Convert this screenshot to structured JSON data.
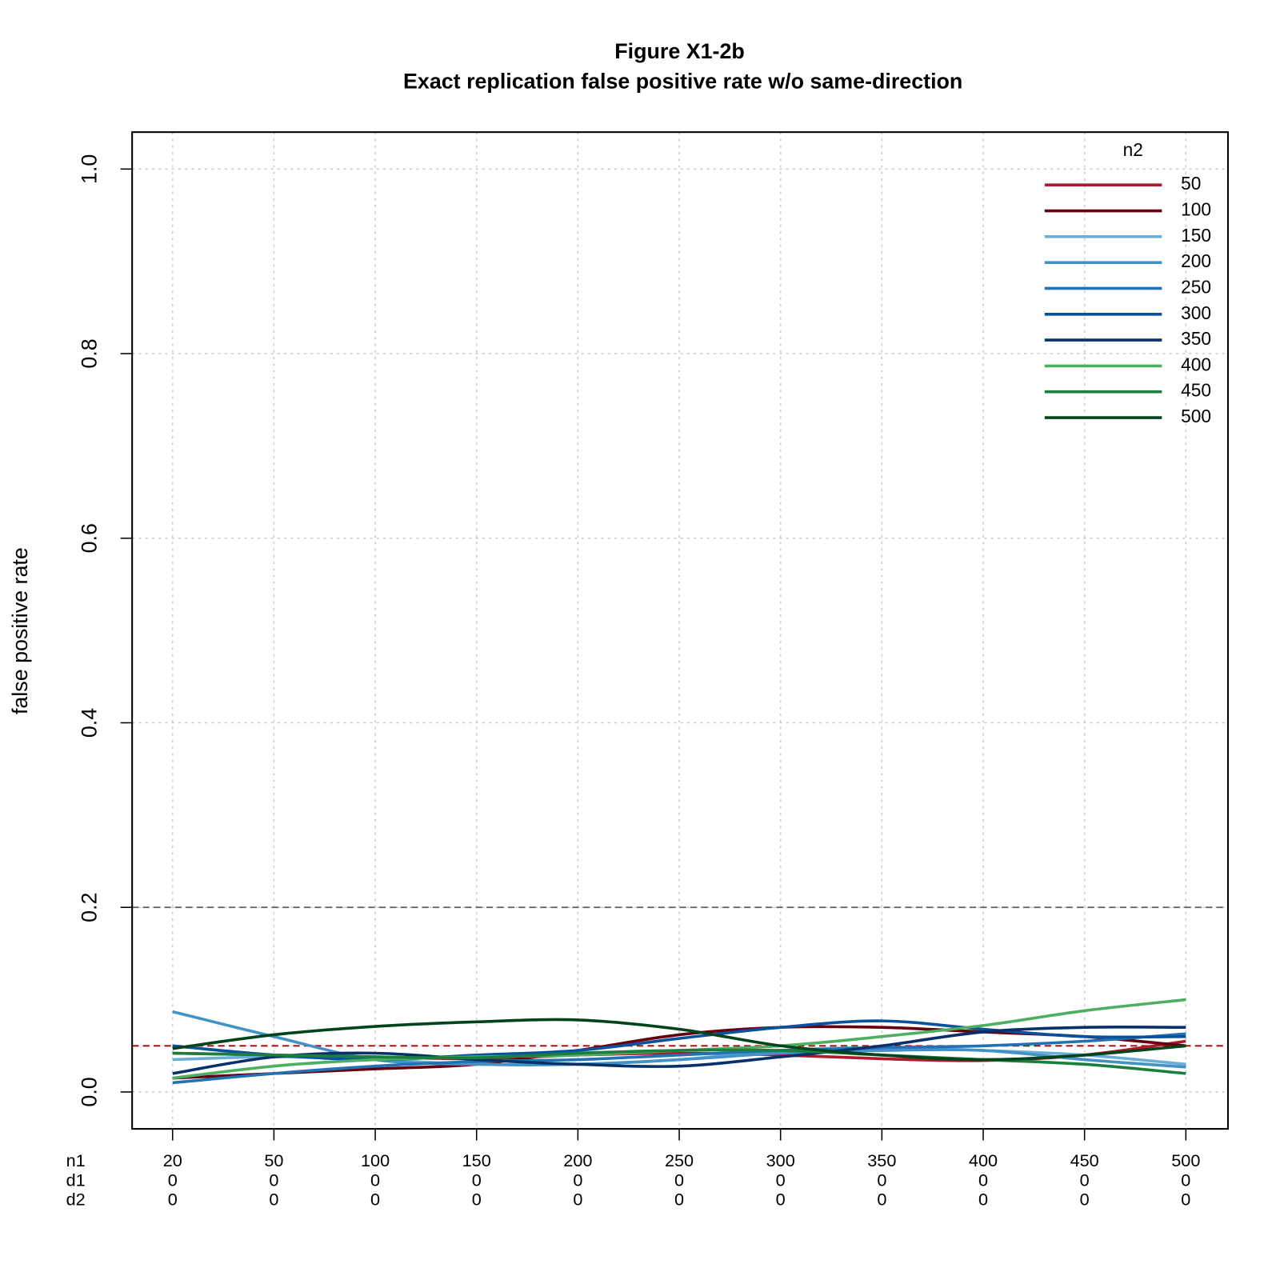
{
  "chart_data": {
    "type": "line",
    "title": "Figure X1-2b",
    "subtitle": "Exact replication false positive rate w/o same-direction",
    "y_label": "false positive rate",
    "categories": [
      "20",
      "50",
      "100",
      "150",
      "200",
      "250",
      "300",
      "350",
      "400",
      "450",
      "500"
    ],
    "x_label_rows": [
      {
        "name": "n1",
        "labels": [
          "20",
          "50",
          "100",
          "150",
          "200",
          "250",
          "300",
          "350",
          "400",
          "450",
          "500"
        ]
      },
      {
        "name": "d1",
        "labels": [
          "0",
          "0",
          "0",
          "0",
          "0",
          "0",
          "0",
          "0",
          "0",
          "0",
          "0"
        ]
      },
      {
        "name": "d2",
        "labels": [
          "0",
          "0",
          "0",
          "0",
          "0",
          "0",
          "0",
          "0",
          "0",
          "0",
          "0"
        ]
      }
    ],
    "ylim": [
      -0.04,
      1.04
    ],
    "yticks": [
      {
        "value": 0,
        "label": "0.0"
      },
      0.2,
      0.4,
      0.6,
      0.8,
      {
        "value": 1,
        "label": "1.0"
      }
    ],
    "grid": true,
    "hlines": [
      {
        "value": 0.2,
        "color": "#666666"
      },
      {
        "value": 0.05,
        "color": "#a50000"
      }
    ],
    "legend_title": "n2",
    "legend_position": "topright",
    "series": [
      {
        "name": "50",
        "color": "#b2182b",
        "values": [
          0.042,
          0.04,
          0.038,
          0.036,
          0.04,
          0.042,
          0.04,
          0.036,
          0.034,
          0.04,
          0.055
        ]
      },
      {
        "name": "100",
        "color": "#67000d",
        "values": [
          0.015,
          0.02,
          0.025,
          0.03,
          0.045,
          0.062,
          0.07,
          0.07,
          0.065,
          0.06,
          0.05
        ]
      },
      {
        "name": "150",
        "color": "#6baed6",
        "values": [
          0.035,
          0.038,
          0.035,
          0.03,
          0.03,
          0.035,
          0.045,
          0.048,
          0.045,
          0.04,
          0.03
        ]
      },
      {
        "name": "200",
        "color": "#4292c6",
        "values": [
          0.087,
          0.06,
          0.035,
          0.03,
          0.03,
          0.035,
          0.042,
          0.045,
          0.045,
          0.035,
          0.027
        ]
      },
      {
        "name": "250",
        "color": "#2171b5",
        "values": [
          0.01,
          0.02,
          0.028,
          0.033,
          0.035,
          0.04,
          0.045,
          0.048,
          0.05,
          0.055,
          0.063
        ]
      },
      {
        "name": "300",
        "color": "#08519c",
        "values": [
          0.05,
          0.04,
          0.035,
          0.04,
          0.045,
          0.058,
          0.07,
          0.077,
          0.068,
          0.06,
          0.06
        ]
      },
      {
        "name": "350",
        "color": "#08306b",
        "values": [
          0.02,
          0.038,
          0.042,
          0.035,
          0.03,
          0.028,
          0.038,
          0.05,
          0.065,
          0.07,
          0.07
        ]
      },
      {
        "name": "400",
        "color": "#4daf62",
        "values": [
          0.015,
          0.028,
          0.035,
          0.038,
          0.04,
          0.045,
          0.05,
          0.06,
          0.072,
          0.088,
          0.1
        ]
      },
      {
        "name": "450",
        "color": "#1a7f3c",
        "values": [
          0.042,
          0.04,
          0.038,
          0.037,
          0.042,
          0.045,
          0.045,
          0.04,
          0.035,
          0.03,
          0.02
        ]
      },
      {
        "name": "500",
        "color": "#00441b",
        "values": [
          0.047,
          0.062,
          0.071,
          0.076,
          0.078,
          0.068,
          0.05,
          0.04,
          0.035,
          0.04,
          0.05
        ]
      }
    ]
  }
}
